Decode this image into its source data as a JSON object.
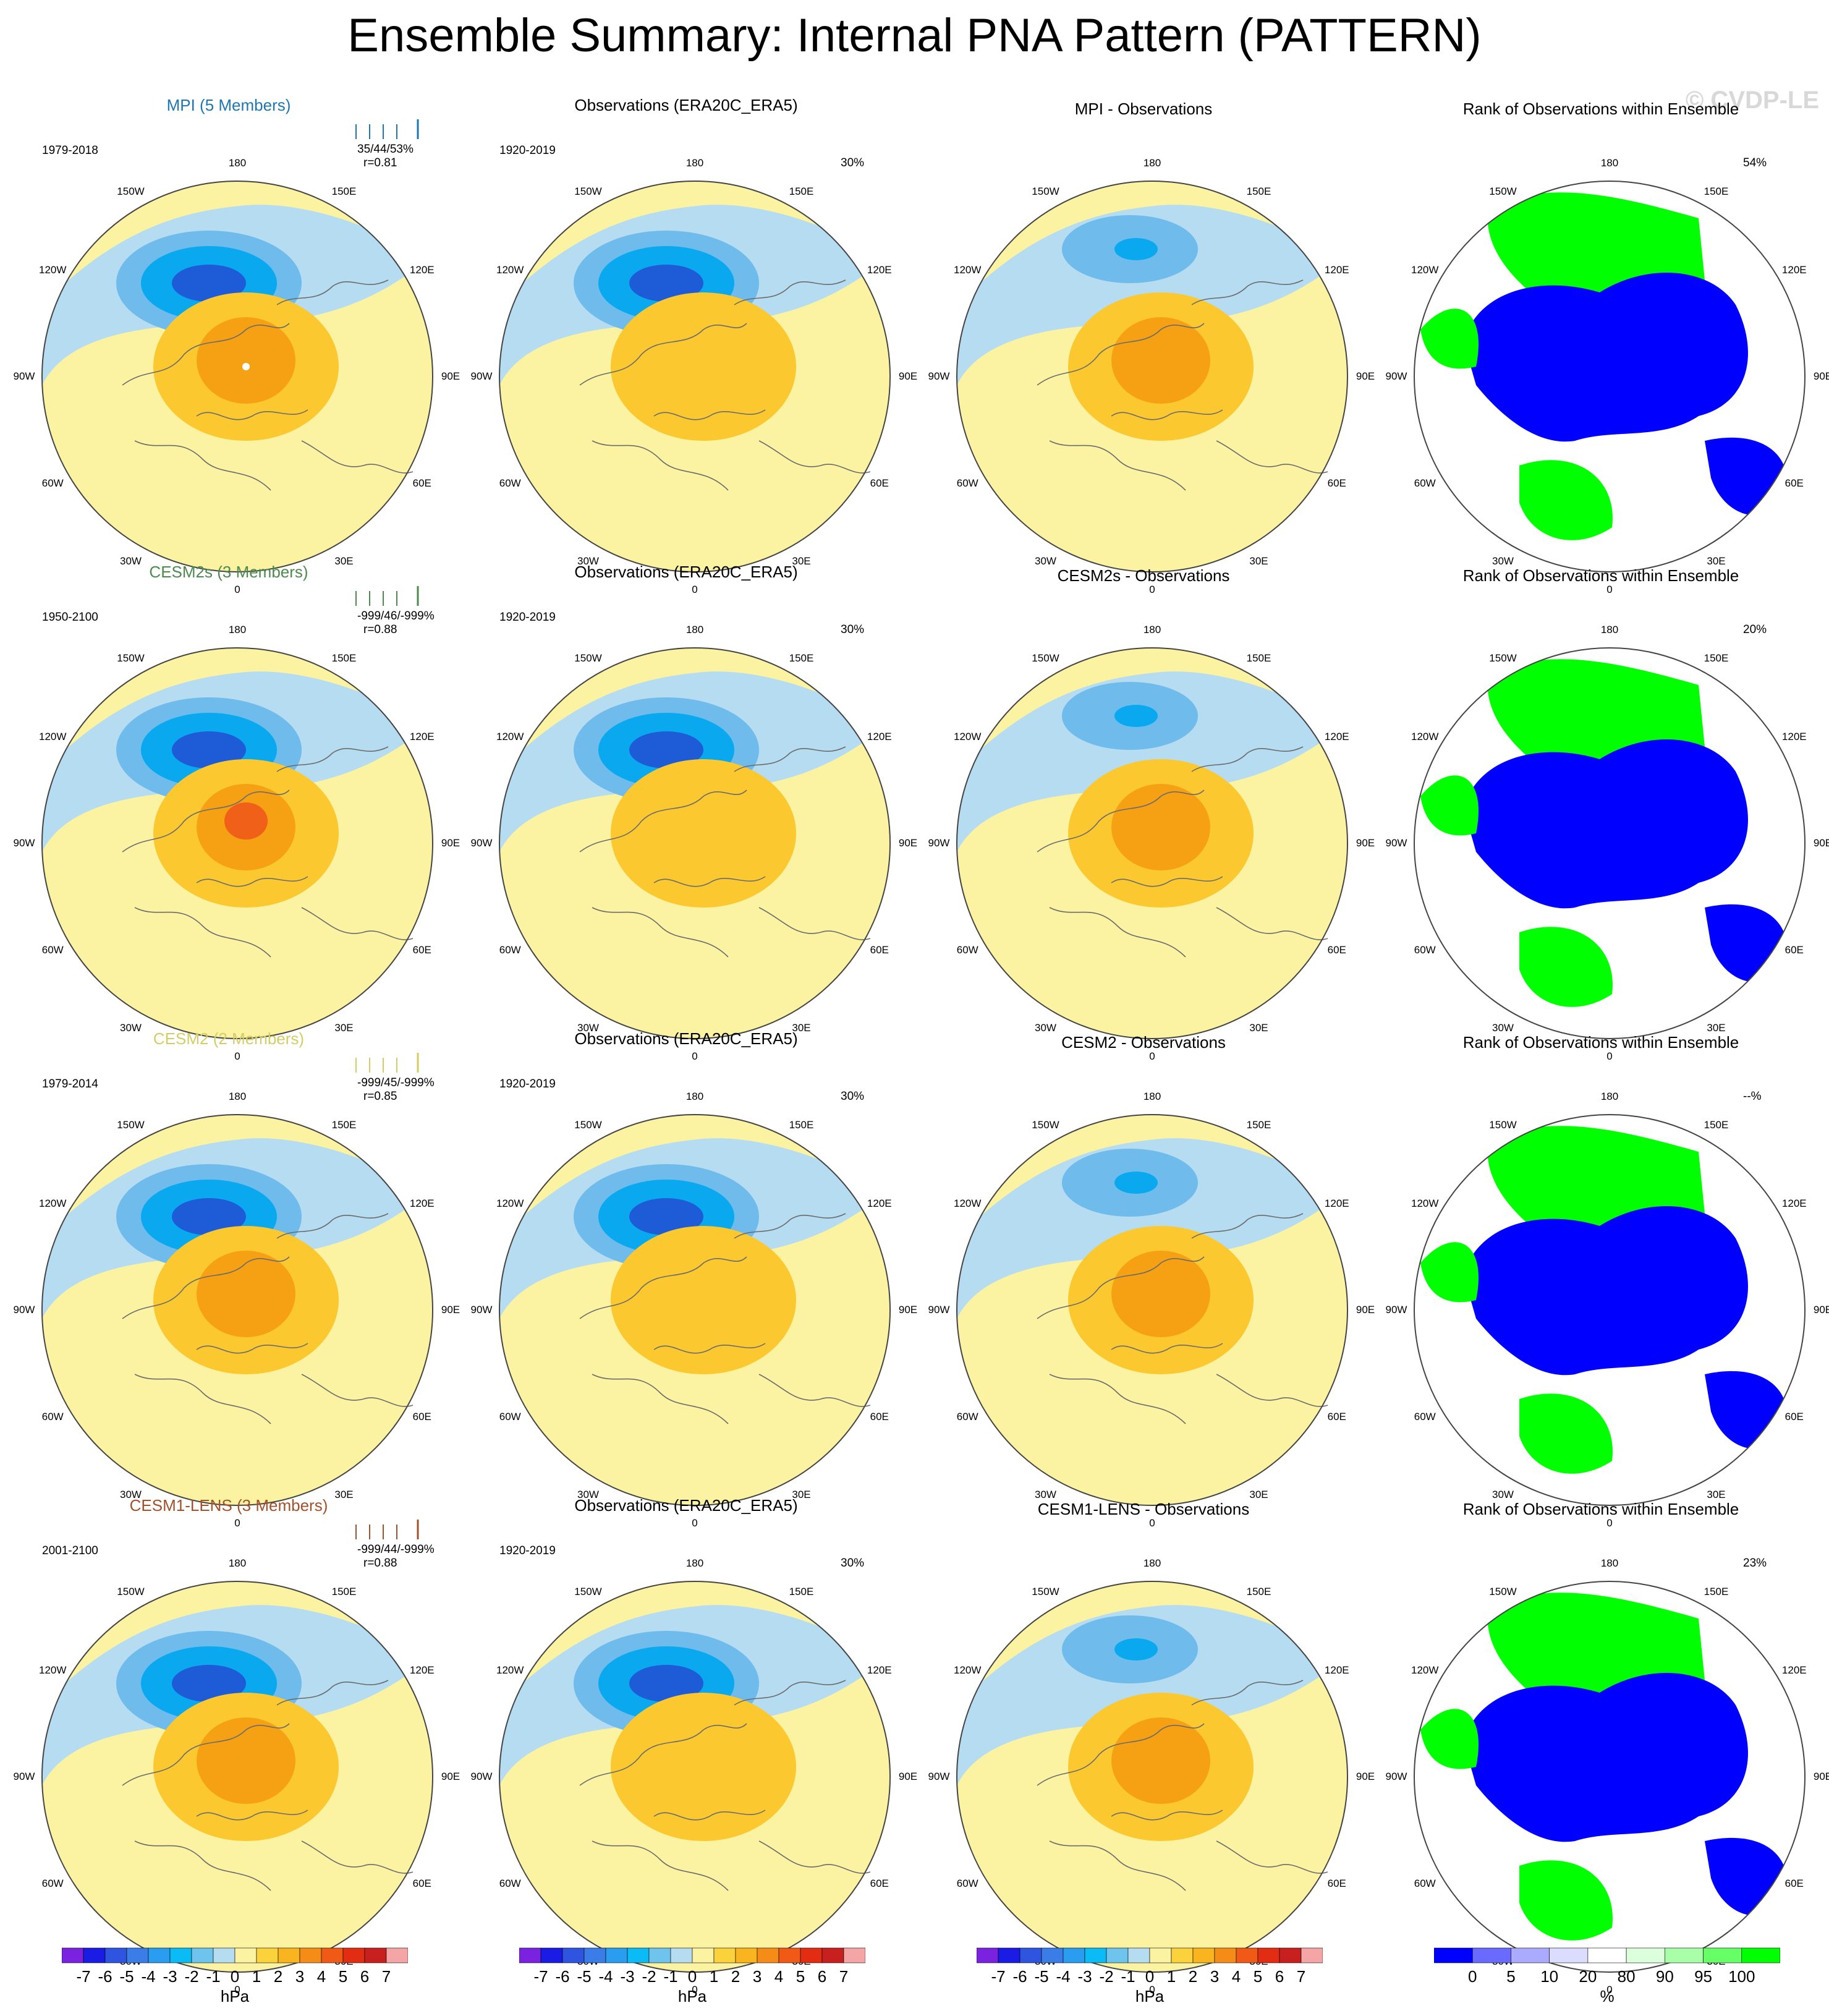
{
  "title": "Ensemble Summary: Internal PNA Pattern (PATTERN)",
  "copyright": "© CVDP-LE",
  "colors": {
    "neg_strong": "#1e5bd6",
    "neg_mid": "#0aa9ef",
    "neg_light": "#6fbbec",
    "neg_pale": "#b6dcf1",
    "pos_pale": "#fbf3a2",
    "pos_light": "#fbc830",
    "pos_mid": "#f6a114",
    "pos_strong": "#f06018",
    "rank_low": "#0000ff",
    "rank_high": "#00ff00",
    "rank_mid": "#ffffff",
    "rank_pale": "#e5fbe5",
    "coast": "#6b6b6b"
  },
  "lon_labels": [
    "180",
    "150E",
    "120E",
    "90E",
    "60E",
    "30E",
    "0",
    "30W",
    "60W",
    "90W",
    "120W",
    "150W"
  ],
  "rows": [
    {
      "model": {
        "title": "MPI (5 Members)",
        "title_color": "#1e77b4",
        "years": "1979-2018",
        "stats": "35/44/53%",
        "corr": "r=0.81"
      },
      "obs": {
        "title": "Observations (ERA20C_ERA5)",
        "years": "1920-2019",
        "pct": "30%"
      },
      "diff": {
        "title": "MPI - Observations"
      },
      "rank": {
        "title": "Rank of Observations within Ensemble",
        "pct": "54%"
      }
    },
    {
      "model": {
        "title": "CESM2s (3 Members)",
        "title_color": "#4e8a4e",
        "years": "1950-2100",
        "stats": "-999/46/-999%",
        "corr": "r=0.88"
      },
      "obs": {
        "title": "Observations (ERA20C_ERA5)",
        "years": "1920-2019",
        "pct": "30%"
      },
      "diff": {
        "title": "CESM2s - Observations"
      },
      "rank": {
        "title": "Rank of Observations within Ensemble",
        "pct": "20%"
      }
    },
    {
      "model": {
        "title": "CESM2 (2 Members)",
        "title_color": "#d6cc66",
        "years": "1979-2014",
        "stats": "-999/45/-999%",
        "corr": "r=0.85"
      },
      "obs": {
        "title": "Observations (ERA20C_ERA5)",
        "years": "1920-2019",
        "pct": "30%"
      },
      "diff": {
        "title": "CESM2 - Observations"
      },
      "rank": {
        "title": "Rank of Observations within Ensemble",
        "pct": "--%"
      }
    },
    {
      "model": {
        "title": "CESM1-LENS (3 Members)",
        "title_color": "#a0522d",
        "years": "2001-2100",
        "stats": "-999/44/-999%",
        "corr": "r=0.88"
      },
      "obs": {
        "title": "Observations (ERA20C_ERA5)",
        "years": "1920-2019",
        "pct": "30%"
      },
      "diff": {
        "title": "CESM1-LENS - Observations"
      },
      "rank": {
        "title": "Rank of Observations within Ensemble",
        "pct": "23%"
      }
    }
  ],
  "colorbar_hpa": {
    "labels": [
      "-7",
      "-6",
      "-5",
      "-4",
      "-3",
      "-2",
      "-1",
      "0",
      "1",
      "2",
      "3",
      "4",
      "5",
      "6",
      "7"
    ],
    "colors": [
      "#7b22e0",
      "#1b1be6",
      "#2f54e0",
      "#3b7de8",
      "#2a9df0",
      "#0bbbf5",
      "#6fc4ee",
      "#b6dcf1",
      "#fbf3a2",
      "#fbd23c",
      "#f9b41f",
      "#f68c18",
      "#f05a16",
      "#e32d12",
      "#c81f1f",
      "#f5a5a5"
    ],
    "units": "hPa"
  },
  "colorbar_rank": {
    "labels": [
      "0",
      "5",
      "10",
      "20",
      "80",
      "90",
      "95",
      "100"
    ],
    "colors": [
      "#0000ff",
      "#6a6aff",
      "#aaaaff",
      "#dcdcff",
      "#ffffff",
      "#dcffdc",
      "#a8ffa8",
      "#66ff66",
      "#00ff00"
    ],
    "units": "%"
  }
}
